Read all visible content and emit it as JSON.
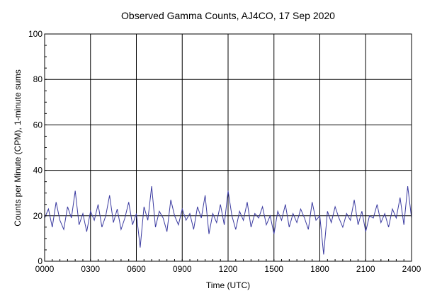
{
  "chart_data": {
    "type": "line",
    "title": "Observed Gamma Counts, AJ4CO, 17 Sep 2020",
    "xlabel": "Time (UTC)",
    "ylabel": "Counts per Minute (CPM), 1-minute sums",
    "xlim": [
      0,
      1440
    ],
    "ylim": [
      0,
      100
    ],
    "x_ticks": [
      {
        "value": 0,
        "label": "0000"
      },
      {
        "value": 180,
        "label": "0300"
      },
      {
        "value": 360,
        "label": "0600"
      },
      {
        "value": 540,
        "label": "0900"
      },
      {
        "value": 720,
        "label": "1200"
      },
      {
        "value": 900,
        "label": "1500"
      },
      {
        "value": 1080,
        "label": "1800"
      },
      {
        "value": 1260,
        "label": "2100"
      },
      {
        "value": 1440,
        "label": "2400"
      }
    ],
    "y_ticks": [
      {
        "value": 0,
        "label": "0"
      },
      {
        "value": 20,
        "label": "20"
      },
      {
        "value": 40,
        "label": "40"
      },
      {
        "value": 60,
        "label": "60"
      },
      {
        "value": 80,
        "label": "80"
      },
      {
        "value": 100,
        "label": "100"
      }
    ],
    "grid": true,
    "series": [
      {
        "color": "#3a3aa0",
        "x": [
          0,
          15,
          30,
          45,
          60,
          75,
          90,
          105,
          120,
          135,
          150,
          165,
          180,
          195,
          210,
          225,
          240,
          255,
          270,
          285,
          300,
          315,
          330,
          345,
          360,
          375,
          390,
          405,
          420,
          435,
          450,
          465,
          480,
          495,
          510,
          525,
          540,
          555,
          570,
          585,
          600,
          615,
          630,
          645,
          660,
          675,
          690,
          705,
          720,
          735,
          750,
          765,
          780,
          795,
          810,
          825,
          840,
          855,
          870,
          885,
          900,
          915,
          930,
          945,
          960,
          975,
          990,
          1005,
          1020,
          1035,
          1050,
          1065,
          1080,
          1095,
          1110,
          1125,
          1140,
          1155,
          1170,
          1185,
          1200,
          1215,
          1230,
          1245,
          1260,
          1275,
          1290,
          1305,
          1320,
          1335,
          1350,
          1365,
          1380,
          1395,
          1410,
          1425,
          1440
        ],
        "y": [
          19,
          23,
          15,
          26,
          18,
          14,
          24,
          19,
          31,
          16,
          21,
          13,
          22,
          18,
          25,
          15,
          20,
          29,
          17,
          23,
          14,
          19,
          26,
          16,
          21,
          6,
          24,
          18,
          33,
          15,
          22,
          19,
          13,
          27,
          20,
          16,
          23,
          18,
          21,
          14,
          24,
          19,
          29,
          12,
          21,
          17,
          25,
          16,
          31,
          20,
          14,
          22,
          18,
          26,
          15,
          21,
          19,
          24,
          16,
          20,
          12,
          22,
          18,
          25,
          15,
          21,
          17,
          23,
          19,
          14,
          26,
          18,
          20,
          3,
          22,
          17,
          24,
          19,
          15,
          21,
          18,
          27,
          16,
          22,
          13,
          20,
          19,
          25,
          17,
          21,
          15,
          23,
          19,
          28,
          16,
          33,
          19
        ]
      }
    ]
  }
}
